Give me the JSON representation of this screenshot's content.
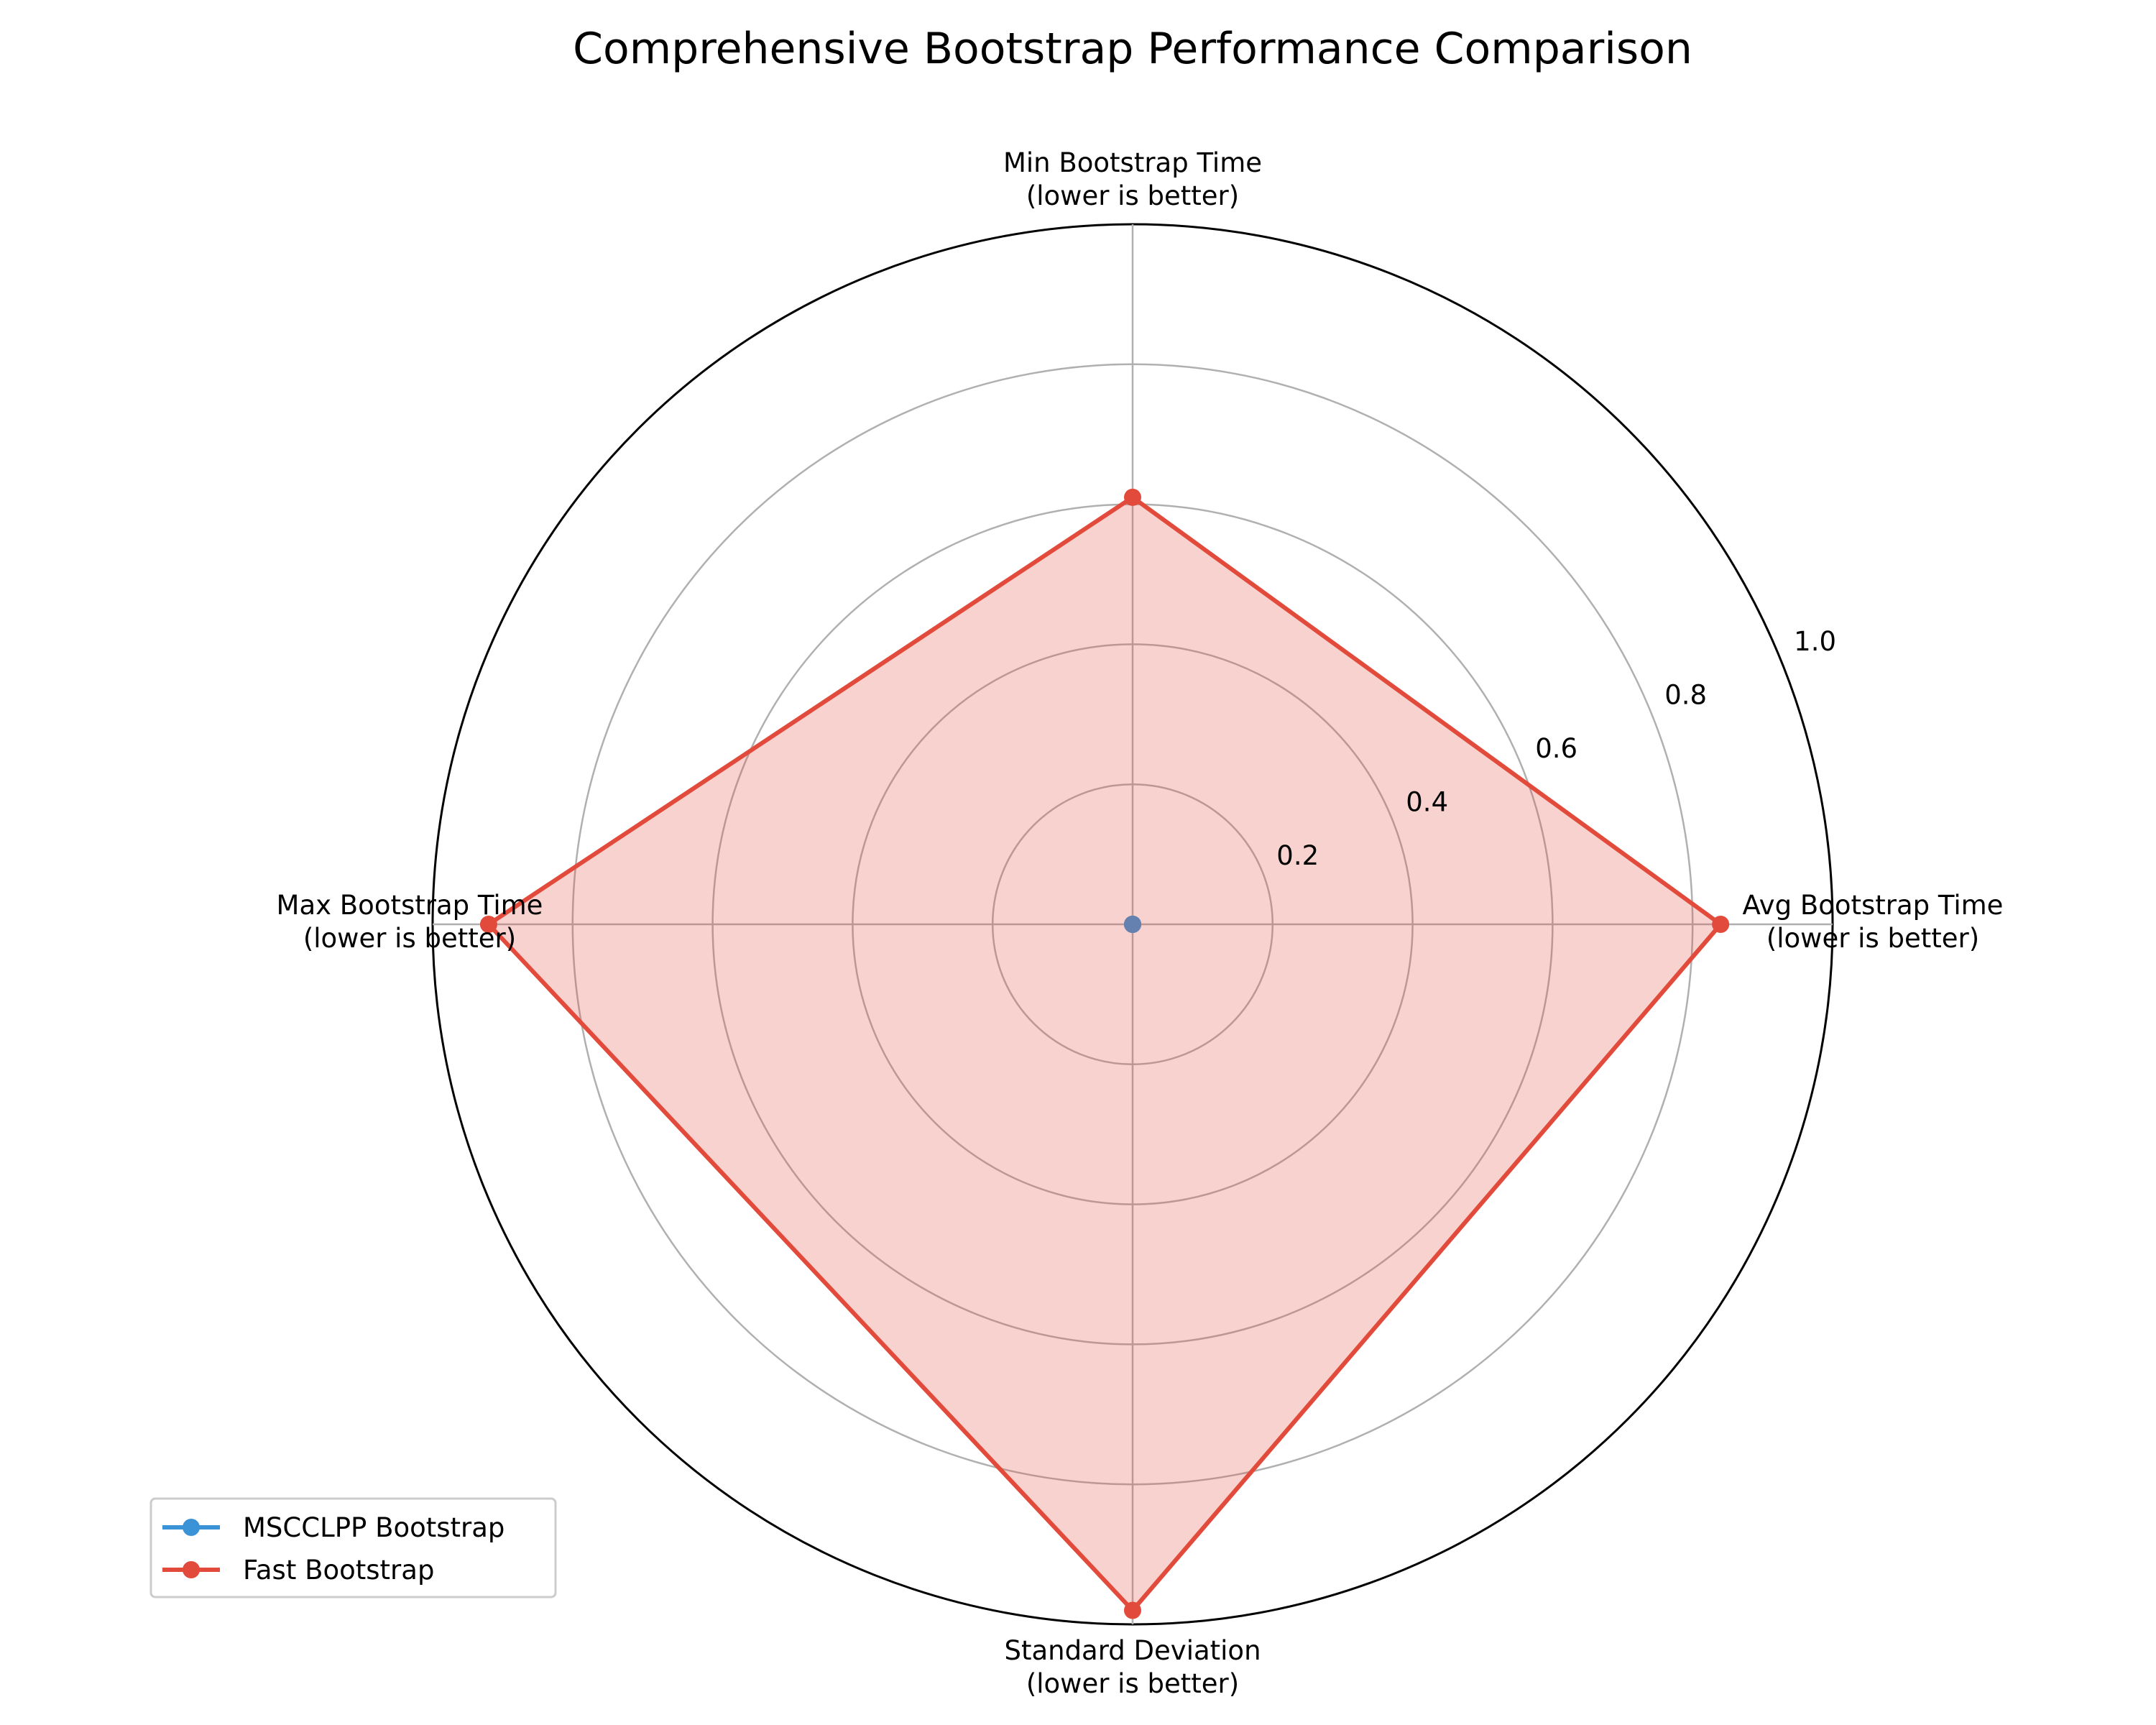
{
  "chart_data": {
    "type": "radar",
    "title": "Comprehensive Bootstrap Performance Comparison",
    "axes": [
      [
        "Avg Bootstrap Time",
        "(lower is better)"
      ],
      [
        "Min Bootstrap Time",
        "(lower is better)"
      ],
      [
        "Max Bootstrap Time",
        "(lower is better)"
      ],
      [
        "Standard Deviation",
        "(lower is better)"
      ]
    ],
    "rlim": [
      0,
      1.0
    ],
    "rticks": [
      "0.2",
      "0.4",
      "0.6",
      "0.8",
      "1.0"
    ],
    "rtick_values": [
      0.2,
      0.4,
      0.6,
      0.8,
      1.0
    ],
    "grid": true,
    "legend_position": "bottom-left",
    "series": [
      {
        "name": "MSCCLPP Bootstrap",
        "color": "#3a93d6",
        "values": [
          0,
          0,
          0,
          0
        ]
      },
      {
        "name": "Fast Bootstrap",
        "color": "#e24a3b",
        "values": [
          0.84,
          0.61,
          0.92,
          0.98
        ]
      }
    ]
  }
}
